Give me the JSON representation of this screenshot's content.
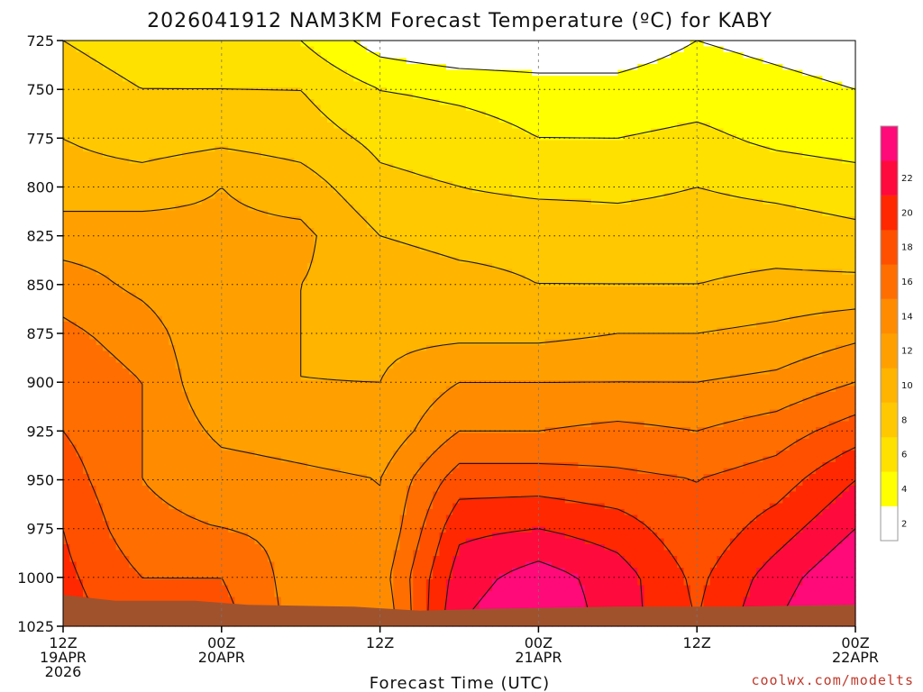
{
  "chart_data": {
    "type": "heatmap",
    "title": "2026041912 NAM3KM Forecast Temperature (ºC) for KABY",
    "xlabel": "Forecast Time (UTC)",
    "credit": "coolwx.com/modelts",
    "y_axis": {
      "quantity": "pressure (hPa)",
      "range": [
        725,
        1025
      ],
      "inverted": true,
      "ticks": [
        725,
        750,
        775,
        800,
        825,
        850,
        875,
        900,
        925,
        950,
        975,
        1000,
        1025
      ]
    },
    "x_axis": {
      "range_hours": [
        0,
        60
      ],
      "ticks": [
        {
          "hour": 0,
          "lines": [
            "12Z",
            "19APR",
            "2026"
          ]
        },
        {
          "hour": 12,
          "lines": [
            "00Z",
            "20APR"
          ]
        },
        {
          "hour": 24,
          "lines": [
            "12Z"
          ]
        },
        {
          "hour": 36,
          "lines": [
            "00Z",
            "21APR"
          ]
        },
        {
          "hour": 48,
          "lines": [
            "12Z"
          ]
        },
        {
          "hour": 60,
          "lines": [
            "00Z",
            "22APR"
          ]
        }
      ]
    },
    "grid": true,
    "colorbar": {
      "placement": "right",
      "levels": [
        0,
        2,
        4,
        6,
        8,
        10,
        12,
        14,
        16,
        18,
        20,
        22,
        24
      ],
      "labels": [
        2,
        4,
        6,
        8,
        10,
        12,
        14,
        16,
        18,
        20,
        22
      ],
      "colors": [
        "#ffffff",
        "#ffff00",
        "#ffe100",
        "#ffc800",
        "#ffb400",
        "#ffa000",
        "#ff8c00",
        "#ff6e00",
        "#ff5000",
        "#ff2800",
        "#ff0a3c",
        "#ff0a78"
      ]
    },
    "temperature_profiles": [
      {
        "hour": 0,
        "t": [
          6,
          6.5,
          8,
          9,
          11,
          13,
          14.5,
          15.5,
          16,
          17,
          18,
          18.5,
          19
        ]
      },
      {
        "hour": 6,
        "t": [
          5.5,
          6,
          7,
          9,
          11,
          11.5,
          13,
          14,
          14,
          14,
          14.5,
          16,
          17
        ]
      },
      {
        "hour": 12,
        "t": [
          5,
          6,
          7.5,
          10,
          10.5,
          10,
          10,
          10,
          11.5,
          13,
          14,
          16,
          17
        ]
      },
      {
        "hour": 18,
        "t": [
          4,
          6,
          7,
          9,
          10.5,
          10,
          10,
          10,
          11,
          12.5,
          13.5,
          13,
          13
        ]
      },
      {
        "hour": 24,
        "t": [
          1,
          4,
          5.5,
          6.5,
          8,
          9,
          9.5,
          10,
          10.5,
          12,
          12,
          13,
          12
        ]
      },
      {
        "hour": 30,
        "t": [
          0,
          3.5,
          5,
          6,
          7.5,
          8.5,
          9.5,
          12,
          14,
          17,
          19.5,
          21,
          22
        ]
      },
      {
        "hour": 36,
        "t": [
          0,
          3,
          4,
          5.5,
          7.5,
          8,
          9.5,
          12,
          14,
          17,
          20,
          23,
          24
        ]
      },
      {
        "hour": 42,
        "t": [
          1,
          2.5,
          4,
          5.5,
          7,
          8,
          10,
          12,
          14.5,
          16.5,
          19,
          21,
          21
        ]
      },
      {
        "hour": 48,
        "t": [
          2,
          3,
          4.5,
          6,
          7,
          8,
          10,
          12,
          14,
          16,
          16.5,
          17.5,
          18
        ]
      },
      {
        "hour": 54,
        "t": [
          1.5,
          2.5,
          3.5,
          5.5,
          7,
          8.5,
          10.5,
          12.5,
          15,
          17,
          19,
          21,
          22
        ]
      },
      {
        "hour": 60,
        "t": [
          1,
          2,
          3,
          5,
          6.5,
          8.5,
          11.5,
          14,
          17,
          20,
          22,
          24,
          25
        ]
      }
    ],
    "surface_pressure": [
      {
        "hour": 0,
        "p": 1009
      },
      {
        "hour": 4,
        "p": 1012
      },
      {
        "hour": 10,
        "p": 1012
      },
      {
        "hour": 14,
        "p": 1014
      },
      {
        "hour": 22,
        "p": 1015
      },
      {
        "hour": 27,
        "p": 1017
      },
      {
        "hour": 33,
        "p": 1016
      },
      {
        "hour": 42,
        "p": 1015
      },
      {
        "hour": 51,
        "p": 1015
      },
      {
        "hour": 60,
        "p": 1014
      }
    ]
  }
}
